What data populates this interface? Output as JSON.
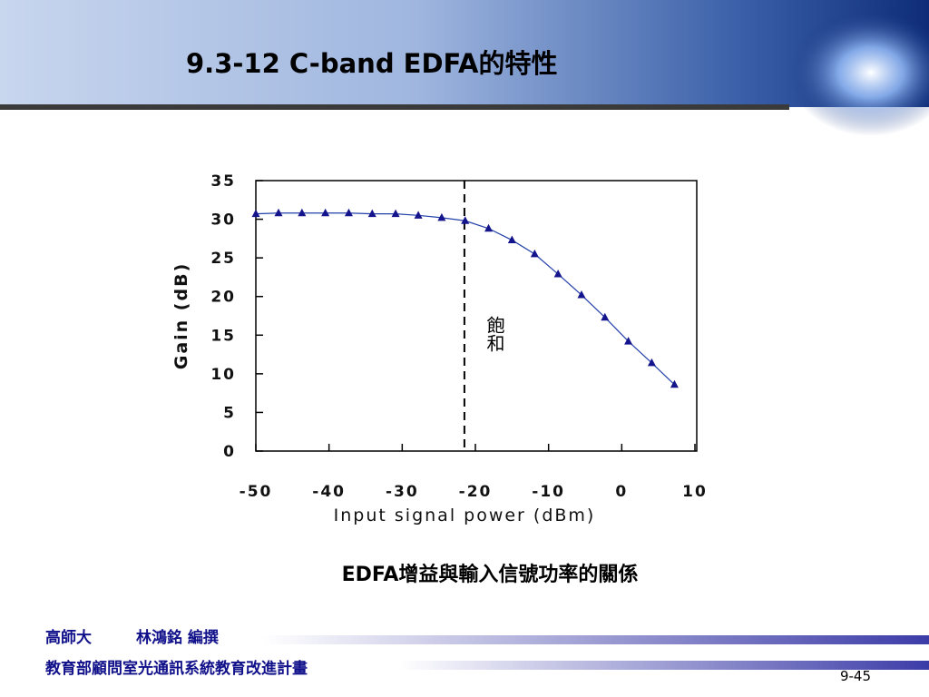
{
  "title": "9.3-12 C-band EDFA的特性",
  "chart_data": {
    "type": "line",
    "xlabel": "Input signal power (dBm)",
    "ylabel": "Gain (dB)",
    "annotation": "飽和",
    "reference_line_x": -21.5,
    "x": [
      -50,
      -46.9,
      -43.7,
      -40.5,
      -37.3,
      -34.1,
      -30.9,
      -27.8,
      -24.6,
      -21.4,
      -18.2,
      -15.0,
      -11.9,
      -8.7,
      -5.5,
      -2.3,
      0.9,
      4.1,
      7.2
    ],
    "series": [
      {
        "name": "Gain",
        "color": "#2340a8",
        "values": [
          30.7,
          30.8,
          30.8,
          30.8,
          30.8,
          30.7,
          30.7,
          30.5,
          30.2,
          29.8,
          28.8,
          27.3,
          25.5,
          22.9,
          20.2,
          17.3,
          14.2,
          11.4,
          8.6
        ]
      }
    ],
    "xlim": [
      -50,
      10
    ],
    "ylim": [
      0,
      35
    ],
    "xticks": [
      -50,
      -40,
      -30,
      -20,
      -10,
      0,
      10
    ],
    "yticks": [
      0,
      5,
      10,
      15,
      20,
      25,
      30,
      35
    ],
    "grid": false
  },
  "caption": "EDFA增益與輸入信號功率的關係",
  "footer": {
    "school": "高師大",
    "author": "林鴻銘 編撰",
    "project": "教育部顧問室光通訊系統教育改進計畫",
    "page": "9-45"
  }
}
